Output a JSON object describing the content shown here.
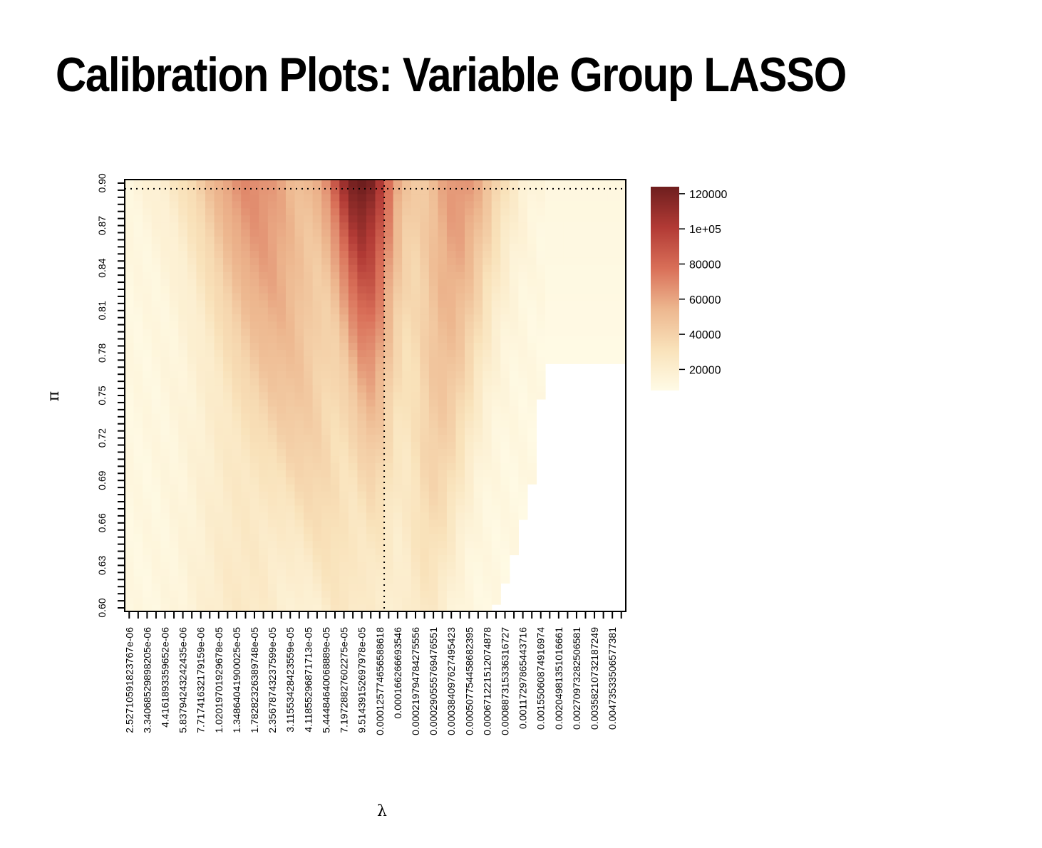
{
  "title": "Calibration Plots:  Variable Group LASSO",
  "chart_data": {
    "type": "heatmap",
    "title": "Calibration Plots:  Variable Group LASSO",
    "xlabel": "λ",
    "ylabel": "π",
    "x_tick_labels": [
      "2.52710591823767e-06",
      "3.34068529898205e-06",
      "4.4161893359652e-06",
      "5.83794243242435e-06",
      "7.71741632179159e-06",
      "1.02019701929678e-05",
      "1.34864041900025e-05",
      "1.78282326389748e-05",
      "2.35678743237599e-05",
      "3.11553428423559e-05",
      "4.11855296871713e-05",
      "5.44484640068889e-05",
      "7.19728827602275e-05",
      "9.51439152697978e-05",
      "0.000125774656588618",
      "0.000166266693546",
      "0.000219794784275556",
      "0.000290555769476551",
      "0.000384097627495423",
      "0.000507754458682395",
      "0.000671221512074878",
      "0.000887315336316727",
      "0.00117297865443716",
      "0.00155060874916974",
      "0.00204981351016661",
      "0.00270973282506581",
      "0.00358210732187249",
      "0.00473533506577381"
    ],
    "y_tick_labels": [
      "0.60",
      "0.63",
      "0.66",
      "0.69",
      "0.72",
      "0.75",
      "0.78",
      "0.81",
      "0.84",
      "0.87",
      "0.90"
    ],
    "y_range": [
      0.6,
      0.905
    ],
    "x_count": 56,
    "y_count": 61,
    "selected_lambda": "0.000125774656588618",
    "selected_pi": 0.9,
    "legend": {
      "labels": [
        "120000",
        "1e+05",
        "80000",
        "60000",
        "40000",
        "20000"
      ],
      "values": [
        120000,
        100000,
        80000,
        60000,
        40000,
        20000
      ],
      "min": 8000,
      "max": 124000,
      "colors": [
        "#FFFBE6",
        "#F9E2BA",
        "#EDB78F",
        "#D96F58",
        "#B23A35",
        "#6E1E1E"
      ]
    },
    "grid": false,
    "legend_position": "right"
  }
}
